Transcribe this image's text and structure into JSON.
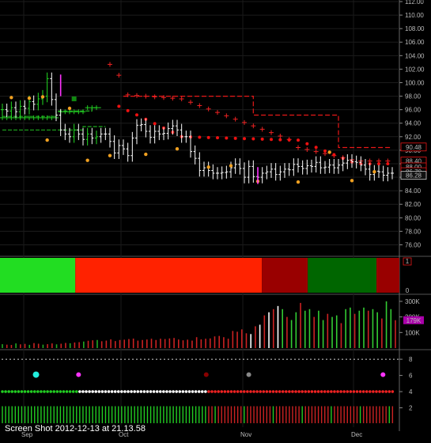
{
  "caption": "Screen Shot 2012-12-13 at 21.13.58",
  "chart_data": {
    "type": "candlestick",
    "x_ticks": [
      "Sep",
      "Oct",
      "Nov",
      "Dec"
    ],
    "price_panel": {
      "ylim": [
        75,
        112
      ],
      "y_ticks": [
        "112.00",
        "110.00",
        "108.00",
        "106.00",
        "104.00",
        "102.00",
        "100.00",
        "98.00",
        "96.00",
        "94.00",
        "92.00",
        "90.00",
        "88.00",
        "86.00",
        "84.00",
        "82.00",
        "80.00",
        "78.00",
        "76.00"
      ],
      "price_labels": [
        {
          "text": "90.48",
          "value": 90.48,
          "color": "#e81818"
        },
        {
          "text": "88.40",
          "value": 88.4,
          "color": "#e81818"
        },
        {
          "text": "88.00",
          "value": 88.0,
          "color": "#e81818"
        },
        {
          "text": "86.70",
          "value": 86.7,
          "color": "#e81818"
        },
        {
          "text": "86.28",
          "value": 86.28,
          "color": "#cccccc"
        }
      ],
      "closes": [
        96,
        95.8,
        96.3,
        95.7,
        96.5,
        96.2,
        97.2,
        96.8,
        97.6,
        98,
        100.6,
        97.5,
        95.2,
        93,
        92.4,
        92,
        93,
        92.4,
        91.6,
        92.4,
        91.8,
        92,
        92.4,
        92.4,
        91.3,
        89.6,
        90.7,
        90.2,
        89.2,
        91.8,
        93.7,
        93.8,
        92.8,
        91.9,
        92.8,
        92.4,
        92.5,
        93.2,
        93.6,
        93,
        92,
        92,
        89.8,
        88.8,
        87,
        87.4,
        87,
        86.6,
        86.6,
        86.7,
        86.8,
        87.4,
        87.9,
        87.3,
        86,
        87.6,
        86.1,
        86,
        86.6,
        86.8,
        87.2,
        86.4,
        86.8,
        87.2,
        87.1,
        87.9,
        87.6,
        87.3,
        87.7,
        87.6,
        88.2,
        87.4,
        87.5,
        87.8,
        87.4,
        87.8,
        88.1,
        88.5,
        88.3,
        88.2,
        87.8,
        87.2,
        86.4,
        86.9,
        86.8,
        86.3,
        86.6,
        86.6
      ]
    },
    "volume_panel": {
      "ylim": [
        0,
        320
      ],
      "y_ticks": [
        "300K",
        "200K",
        "100K"
      ],
      "last_value_label": "179K",
      "values": [
        25,
        22,
        20,
        30,
        24,
        27,
        21,
        32,
        28,
        22,
        25,
        30,
        24,
        28,
        33,
        31,
        36,
        38,
        42,
        47,
        50,
        52,
        44,
        48,
        56,
        45,
        52,
        54,
        58,
        61,
        48,
        52,
        55,
        60,
        52,
        60,
        58,
        62,
        65,
        55,
        50,
        54,
        48,
        70,
        56,
        60,
        62,
        75,
        78,
        70,
        60,
        110,
        105,
        120,
        95,
        90,
        140,
        150,
        210,
        230,
        250,
        270,
        250,
        200,
        180,
        230,
        290,
        240,
        250,
        200,
        240,
        180,
        220,
        200,
        210,
        160,
        250,
        260,
        220,
        240,
        260,
        240,
        250,
        230,
        190,
        300,
        250,
        179
      ]
    },
    "regime_panel": {
      "y_label": "1",
      "segments": [
        {
          "from": 0,
          "to": 23,
          "color": "#22dd22"
        },
        {
          "from": 23,
          "to": 80,
          "color": "#ff2200"
        },
        {
          "from": 80,
          "to": 94,
          "color": "#990000"
        },
        {
          "from": 94,
          "to": 115,
          "color": "#006600"
        },
        {
          "from": 115,
          "to": 122,
          "color": "#990000"
        }
      ]
    },
    "signal_panel": {
      "y_ticks": [
        "8",
        "6",
        "4",
        "2"
      ],
      "flag_markers": [
        {
          "bar": 11,
          "color": "#22eedd"
        },
        {
          "bar": 24,
          "color": "#ff33ff"
        },
        {
          "bar": 63,
          "color": "#880000"
        },
        {
          "bar": 76,
          "color": "#888888"
        },
        {
          "bar": 117,
          "color": "#ff33ff"
        }
      ]
    }
  }
}
